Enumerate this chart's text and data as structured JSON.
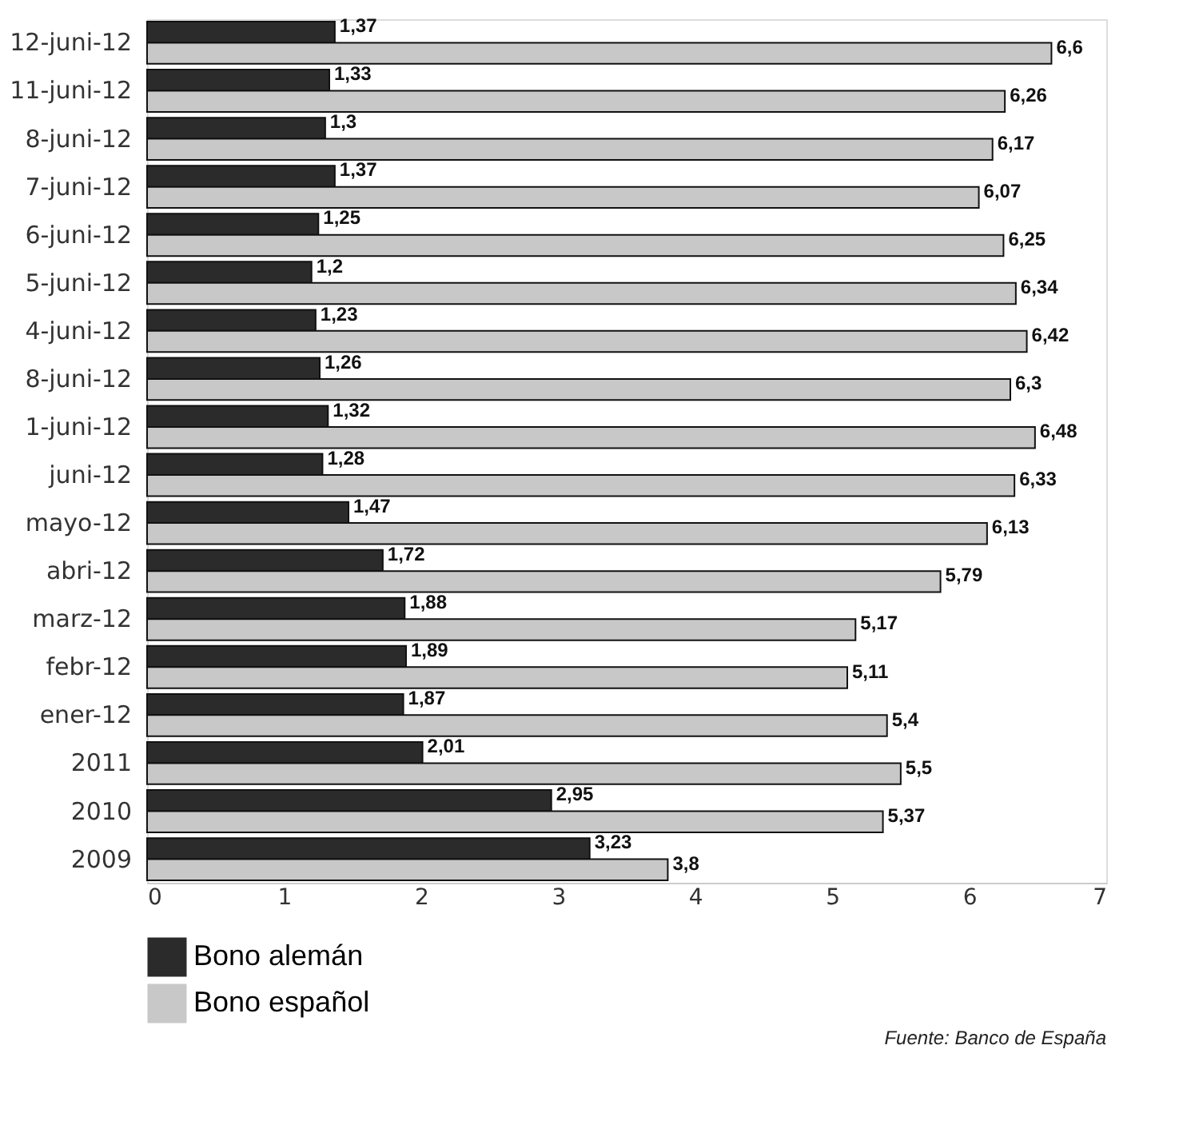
{
  "chart_data": {
    "type": "bar",
    "orientation": "horizontal",
    "categories": [
      "12-juni-12",
      "11-juni-12",
      "8-juni-12",
      "7-juni-12",
      "6-juni-12",
      "5-juni-12",
      "4-juni-12",
      "8-juni-12",
      "1-juni-12",
      "juni-12",
      "mayo-12",
      "abri-12",
      "marz-12",
      "febr-12",
      "ener-12",
      "2011",
      "2010",
      "2009"
    ],
    "series": [
      {
        "name": "Bono alemán",
        "color": "#2b2b2b",
        "values": [
          1.37,
          1.33,
          1.3,
          1.37,
          1.25,
          1.2,
          1.23,
          1.26,
          1.32,
          1.28,
          1.47,
          1.72,
          1.88,
          1.89,
          1.87,
          2.01,
          2.95,
          3.23
        ],
        "value_labels": [
          "1,37",
          "1,33",
          "1,3",
          "1,37",
          "1,25",
          "1,2",
          "1,23",
          "1,26",
          "1,32",
          "1,28",
          "1,47",
          "1,72",
          "1,88",
          "1,89",
          "1,87",
          "2,01",
          "2,95",
          "3,23"
        ]
      },
      {
        "name": "Bono español",
        "color": "#c8c8c8",
        "values": [
          6.6,
          6.26,
          6.17,
          6.07,
          6.25,
          6.34,
          6.42,
          6.3,
          6.48,
          6.33,
          6.13,
          5.79,
          5.17,
          5.11,
          5.4,
          5.5,
          5.37,
          3.8
        ],
        "value_labels": [
          "6,6",
          "6,26",
          "6,17",
          "6,07",
          "6,25",
          "6,34",
          "6,42",
          "6,3",
          "6,48",
          "6,33",
          "6,13",
          "5,79",
          "5,17",
          "5,11",
          "5,4",
          "5,5",
          "5,37",
          "3,8"
        ]
      }
    ],
    "xlim": [
      0,
      7
    ],
    "xticks": [
      0,
      1,
      2,
      3,
      4,
      5,
      6,
      7
    ],
    "legend": "bottom",
    "grid": false,
    "annotations": [
      "Fuente: Banco de España"
    ]
  }
}
